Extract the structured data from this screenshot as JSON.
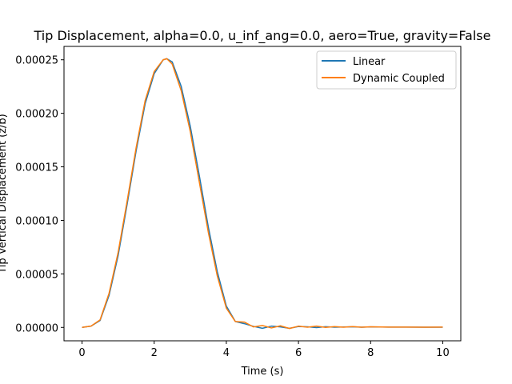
{
  "chart_data": {
    "type": "line",
    "title": "Tip Displacement, alpha=0.0, u_inf_ang=0.0, aero=True, gravity=False",
    "xlabel": "Time (s)",
    "ylabel": "Tip Vertical Displacement (z/b)",
    "xlim": [
      -0.5,
      10.5
    ],
    "ylim": [
      -1.25e-05,
      0.0002625
    ],
    "xticks": [
      0,
      2,
      4,
      6,
      8,
      10
    ],
    "xtick_labels": [
      "0",
      "2",
      "4",
      "6",
      "8",
      "10"
    ],
    "yticks": [
      0,
      5e-05,
      0.0001,
      0.00015,
      0.0002,
      0.00025
    ],
    "ytick_labels": [
      "0.00000",
      "0.00005",
      "0.00010",
      "0.00015",
      "0.00020",
      "0.00025"
    ],
    "grid": false,
    "legend_position": "top-right",
    "series": [
      {
        "name": "Linear",
        "color": "#1f77b4",
        "x": [
          0,
          0.25,
          0.5,
          0.75,
          1.0,
          1.25,
          1.5,
          1.75,
          2.0,
          2.25,
          2.35,
          2.5,
          2.75,
          3.0,
          3.25,
          3.5,
          3.75,
          4.0,
          4.25,
          4.5,
          4.75,
          5.0,
          5.25,
          5.5,
          5.75,
          6.0,
          6.25,
          6.5,
          6.75,
          7.0,
          7.25,
          7.5,
          7.75,
          8.0,
          8.5,
          9.0,
          9.5,
          10.0
        ],
        "y": [
          0,
          1.2e-06,
          6.5e-06,
          3e-05,
          6.7e-05,
          0.000115,
          0.000165,
          0.000209,
          0.000237,
          0.00025,
          0.000251,
          0.000248,
          0.000225,
          0.000188,
          0.000142,
          9.4e-05,
          5.2e-05,
          2e-05,
          5.5e-06,
          3.5e-06,
          1e-06,
          -8e-07,
          1.2e-06,
          5e-07,
          -8e-07,
          8e-07,
          6e-07,
          -2e-07,
          7e-07,
          2e-07,
          4e-07,
          6e-07,
          2e-07,
          5e-07,
          3e-07,
          3e-07,
          2e-07,
          2e-07
        ]
      },
      {
        "name": "Dynamic Coupled",
        "color": "#ff7f0e",
        "x": [
          0,
          0.25,
          0.5,
          0.75,
          1.0,
          1.25,
          1.5,
          1.75,
          2.0,
          2.25,
          2.35,
          2.5,
          2.75,
          3.0,
          3.25,
          3.5,
          3.75,
          4.0,
          4.25,
          4.5,
          4.75,
          5.0,
          5.25,
          5.5,
          5.75,
          6.0,
          6.25,
          6.5,
          6.75,
          7.0,
          7.25,
          7.5,
          7.75,
          8.0,
          8.5,
          9.0,
          9.5,
          10.0
        ],
        "y": [
          0,
          1.2e-06,
          7e-06,
          3.2e-05,
          7e-05,
          0.000118,
          0.000168,
          0.000212,
          0.000239,
          0.00025,
          0.000251,
          0.000246,
          0.000221,
          0.000183,
          0.000136,
          8.9e-05,
          4.8e-05,
          1.8e-05,
          5.5e-06,
          5e-06,
          5e-07,
          1.8e-06,
          -5e-07,
          1.5e-06,
          -1e-06,
          1.2e-06,
          2e-07,
          1.2e-06,
          0.0,
          8e-07,
          2e-07,
          8e-07,
          2e-07,
          6e-07,
          3e-07,
          3e-07,
          2e-07,
          3e-07
        ]
      }
    ]
  }
}
